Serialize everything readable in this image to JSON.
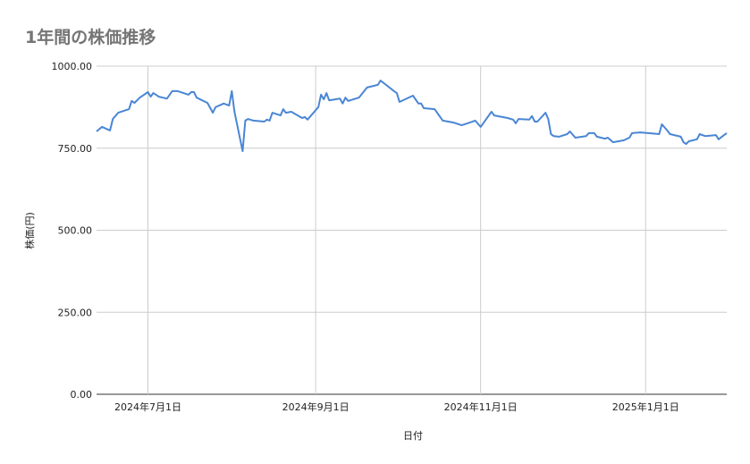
{
  "chart_data": {
    "type": "line",
    "title": "1年間の株価推移",
    "xlabel": "日付",
    "ylabel": "株価(円)",
    "ylim": [
      0,
      1000
    ],
    "xlim": [
      "2024-06-12",
      "2025-01-31"
    ],
    "yticks": [
      "0.00",
      "250.00",
      "500.00",
      "750.00",
      "1000.00"
    ],
    "xticks": [
      {
        "date": "2024-07-01",
        "label": "2024年7月1日"
      },
      {
        "date": "2024-09-01",
        "label": "2024年9月1日"
      },
      {
        "date": "2024-11-01",
        "label": "2024年11月1日"
      },
      {
        "date": "2025-01-01",
        "label": "2025年1月1日"
      }
    ],
    "grid": true,
    "legend": "none",
    "line_color": "#4a86d4",
    "points": [
      [
        "2024-06-12",
        801
      ],
      [
        "2024-06-14",
        815
      ],
      [
        "2024-06-17",
        804
      ],
      [
        "2024-06-18",
        839
      ],
      [
        "2024-06-20",
        858
      ],
      [
        "2024-06-24",
        869
      ],
      [
        "2024-06-25",
        894
      ],
      [
        "2024-06-26",
        888
      ],
      [
        "2024-06-28",
        904
      ],
      [
        "2024-07-01",
        921
      ],
      [
        "2024-07-02",
        907
      ],
      [
        "2024-07-03",
        918
      ],
      [
        "2024-07-05",
        907
      ],
      [
        "2024-07-08",
        901
      ],
      [
        "2024-07-10",
        924
      ],
      [
        "2024-07-12",
        924
      ],
      [
        "2024-07-16",
        913
      ],
      [
        "2024-07-17",
        921
      ],
      [
        "2024-07-18",
        921
      ],
      [
        "2024-07-19",
        904
      ],
      [
        "2024-07-23",
        888
      ],
      [
        "2024-07-25",
        858
      ],
      [
        "2024-07-26",
        875
      ],
      [
        "2024-07-29",
        886
      ],
      [
        "2024-07-31",
        880
      ],
      [
        "2024-08-01",
        924
      ],
      [
        "2024-08-02",
        861
      ],
      [
        "2024-08-05",
        741
      ],
      [
        "2024-08-06",
        834
      ],
      [
        "2024-08-07",
        839
      ],
      [
        "2024-08-09",
        834
      ],
      [
        "2024-08-13",
        831
      ],
      [
        "2024-08-14",
        837
      ],
      [
        "2024-08-15",
        834
      ],
      [
        "2024-08-16",
        858
      ],
      [
        "2024-08-19",
        850
      ],
      [
        "2024-08-20",
        869
      ],
      [
        "2024-08-21",
        858
      ],
      [
        "2024-08-23",
        861
      ],
      [
        "2024-08-27",
        842
      ],
      [
        "2024-08-28",
        845
      ],
      [
        "2024-08-29",
        837
      ],
      [
        "2024-09-02",
        875
      ],
      [
        "2024-09-03",
        913
      ],
      [
        "2024-09-04",
        899
      ],
      [
        "2024-09-05",
        918
      ],
      [
        "2024-09-06",
        896
      ],
      [
        "2024-09-10",
        901
      ],
      [
        "2024-09-11",
        886
      ],
      [
        "2024-09-12",
        904
      ],
      [
        "2024-09-13",
        894
      ],
      [
        "2024-09-17",
        904
      ],
      [
        "2024-09-20",
        935
      ],
      [
        "2024-09-24",
        943
      ],
      [
        "2024-09-25",
        956
      ],
      [
        "2024-09-27",
        943
      ],
      [
        "2024-09-30",
        924
      ],
      [
        "2024-10-01",
        918
      ],
      [
        "2024-10-02",
        891
      ],
      [
        "2024-10-07",
        910
      ],
      [
        "2024-10-09",
        886
      ],
      [
        "2024-10-10",
        886
      ],
      [
        "2024-10-11",
        872
      ],
      [
        "2024-10-15",
        869
      ],
      [
        "2024-10-18",
        834
      ],
      [
        "2024-10-22",
        828
      ],
      [
        "2024-10-25",
        820
      ],
      [
        "2024-10-28",
        828
      ],
      [
        "2024-10-30",
        834
      ],
      [
        "2024-11-01",
        815
      ],
      [
        "2024-11-05",
        861
      ],
      [
        "2024-11-06",
        850
      ],
      [
        "2024-11-11",
        842
      ],
      [
        "2024-11-13",
        837
      ],
      [
        "2024-11-14",
        826
      ],
      [
        "2024-11-15",
        839
      ],
      [
        "2024-11-19",
        837
      ],
      [
        "2024-11-20",
        848
      ],
      [
        "2024-11-21",
        831
      ],
      [
        "2024-11-22",
        831
      ],
      [
        "2024-11-25",
        858
      ],
      [
        "2024-11-26",
        839
      ],
      [
        "2024-11-27",
        793
      ],
      [
        "2024-11-28",
        787
      ],
      [
        "2024-11-30",
        785
      ],
      [
        "2024-12-03",
        793
      ],
      [
        "2024-12-04",
        801
      ],
      [
        "2024-12-06",
        782
      ],
      [
        "2024-12-10",
        787
      ],
      [
        "2024-12-11",
        796
      ],
      [
        "2024-12-13",
        796
      ],
      [
        "2024-12-14",
        785
      ],
      [
        "2024-12-17",
        779
      ],
      [
        "2024-12-18",
        782
      ],
      [
        "2024-12-20",
        768
      ],
      [
        "2024-12-24",
        774
      ],
      [
        "2024-12-26",
        782
      ],
      [
        "2024-12-27",
        796
      ],
      [
        "2024-12-30",
        798
      ],
      [
        "2025-01-02",
        796
      ],
      [
        "2025-01-06",
        793
      ],
      [
        "2025-01-07",
        823
      ],
      [
        "2025-01-09",
        804
      ],
      [
        "2025-01-10",
        793
      ],
      [
        "2025-01-14",
        785
      ],
      [
        "2025-01-15",
        768
      ],
      [
        "2025-01-16",
        763
      ],
      [
        "2025-01-17",
        771
      ],
      [
        "2025-01-20",
        777
      ],
      [
        "2025-01-21",
        793
      ],
      [
        "2025-01-23",
        787
      ],
      [
        "2025-01-27",
        790
      ],
      [
        "2025-01-28",
        777
      ],
      [
        "2025-01-30",
        790
      ],
      [
        "2025-01-31",
        796
      ]
    ]
  }
}
